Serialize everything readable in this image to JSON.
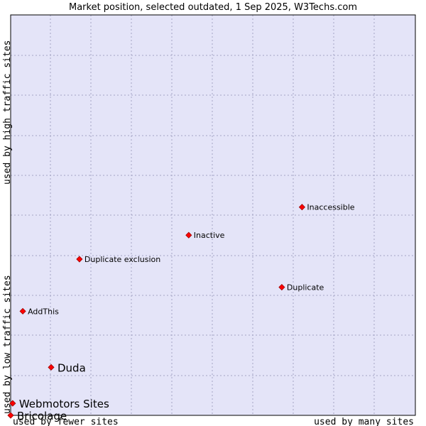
{
  "chart_data": {
    "type": "scatter",
    "title": "Market position, selected outdated, 1 Sep 2025, W3Techs.com",
    "xlabel_left": "used by fewer sites",
    "xlabel_right": "used by many sites",
    "ylabel_bottom": "used by low traffic sites",
    "ylabel_top": "used by high traffic sites",
    "xlim": [
      0,
      100
    ],
    "ylim": [
      0,
      100
    ],
    "grid": true,
    "colors": {
      "plot_background": "#e4e4f8",
      "grid": "#a4a4c4",
      "border": "#000000",
      "point": "#ff0000",
      "point_outline": "#9c0000"
    },
    "points": [
      {
        "label": "Inaccessible",
        "x": 72,
        "y": 52,
        "emphasis": false
      },
      {
        "label": "Inactive",
        "x": 44,
        "y": 45,
        "emphasis": false
      },
      {
        "label": "Duplicate exclusion",
        "x": 17,
        "y": 39,
        "emphasis": false
      },
      {
        "label": "Duplicate",
        "x": 67,
        "y": 32,
        "emphasis": false
      },
      {
        "label": "AddThis",
        "x": 3,
        "y": 26,
        "emphasis": false
      },
      {
        "label": "Duda",
        "x": 10,
        "y": 12,
        "emphasis": true
      },
      {
        "label": "Webmotors Sites",
        "x": 0.5,
        "y": 3,
        "emphasis": true
      },
      {
        "label": "Bricolage",
        "x": 0,
        "y": 0,
        "emphasis": true
      }
    ]
  }
}
